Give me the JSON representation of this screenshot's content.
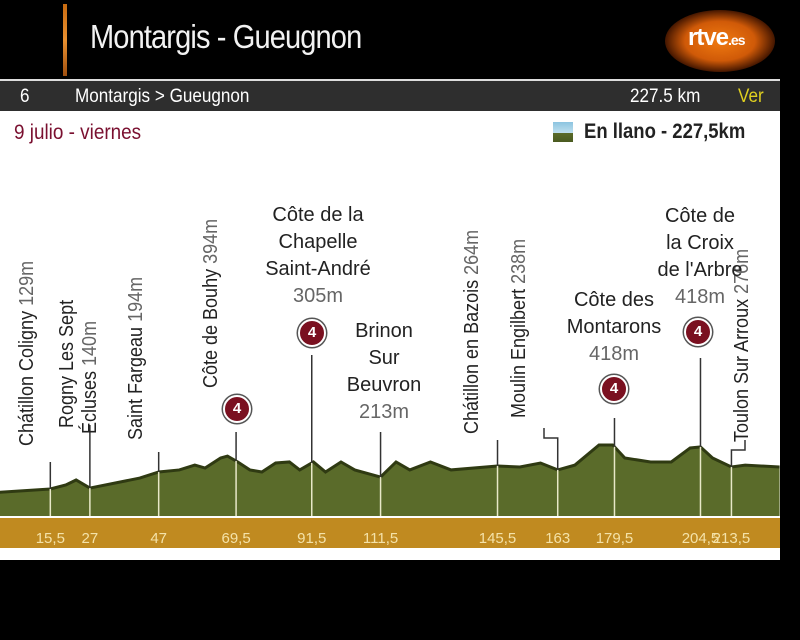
{
  "header": {
    "title": "Montargis - Gueugnon",
    "logo": "rtve.es"
  },
  "stage_bar": {
    "stage_number": "6",
    "route": "Montargis > Gueugnon",
    "distance": "227.5 km",
    "link": "Ver"
  },
  "date": "9 julio - viernes",
  "legend": {
    "icon": "flat-stage-icon",
    "label": "En llano - 227,5km"
  },
  "colors": {
    "terrain": "#5a6b2a",
    "km_band": "#c08a20",
    "badge": "#7a1020",
    "date": "#7a1030",
    "link": "#e0d020"
  },
  "chart_data": {
    "type": "area",
    "xlabel": "",
    "ylabel": "",
    "xlim": [
      0,
      227.5
    ],
    "grid": false,
    "profile": [
      [
        0,
        115
      ],
      [
        15.5,
        135
      ],
      [
        20,
        158
      ],
      [
        23,
        187
      ],
      [
        27,
        140
      ],
      [
        41.5,
        198
      ],
      [
        47,
        233
      ],
      [
        53,
        245
      ],
      [
        57.5,
        273
      ],
      [
        60.5,
        256
      ],
      [
        65,
        314
      ],
      [
        67,
        325
      ],
      [
        70,
        291
      ],
      [
        73.5,
        245
      ],
      [
        77,
        233
      ],
      [
        81,
        285
      ],
      [
        85,
        291
      ],
      [
        88,
        245
      ],
      [
        92,
        291
      ],
      [
        95.5,
        233
      ],
      [
        100,
        291
      ],
      [
        104,
        245
      ],
      [
        111.5,
        204
      ],
      [
        116,
        291
      ],
      [
        120,
        245
      ],
      [
        126,
        291
      ],
      [
        132,
        245
      ],
      [
        145.5,
        268
      ],
      [
        152,
        262
      ],
      [
        158,
        285
      ],
      [
        163,
        245
      ],
      [
        168,
        273
      ],
      [
        175,
        389
      ],
      [
        179,
        389
      ],
      [
        182.5,
        314
      ],
      [
        190,
        291
      ],
      [
        196,
        291
      ],
      [
        201.5,
        372
      ],
      [
        204.5,
        378
      ],
      [
        208,
        314
      ],
      [
        213.5,
        262
      ],
      [
        217.5,
        273
      ],
      [
        227.5,
        262
      ]
    ],
    "km_ticks": [
      "15,5",
      "27",
      "47",
      "69,5",
      "91,5",
      "111,5",
      "145,5",
      "163",
      "179,5",
      "204,5",
      "213,5"
    ],
    "waypoints": [
      {
        "km": 15.5,
        "name": "Chátillon Coligny",
        "altitude": "129m"
      },
      {
        "km": 27,
        "name": "Rogny Les Sept",
        "name2": "Écluses",
        "altitude": "140m"
      },
      {
        "km": 47,
        "name": "Saint Fargeau",
        "altitude": "194m"
      },
      {
        "km": 69.5,
        "name": "Côte de Bouhy",
        "altitude": "394m",
        "category": "4"
      },
      {
        "km": 91.5,
        "name": "Côte de la",
        "name2": "Chapelle",
        "name3": "Saint-André",
        "altitude": "305m",
        "category": "4"
      },
      {
        "km": 111.5,
        "name": "Brinon",
        "name2": "Sur",
        "name3": "Beuvron",
        "altitude": "213m"
      },
      {
        "km": 145.5,
        "name": "Chátillon en Bazois",
        "altitude": "264m"
      },
      {
        "km": 163,
        "name": "Moulin Engilbert",
        "altitude": "238m"
      },
      {
        "km": 179.5,
        "name": "Côte des",
        "name2": "Montarons",
        "altitude": "418m",
        "category": "4"
      },
      {
        "km": 204.5,
        "name": "Côte de",
        "name2": "la Croix",
        "name3": "de l'Arbre",
        "altitude": "418m",
        "category": "4"
      },
      {
        "km": 213.5,
        "name": "Toulon Sur Arroux",
        "altitude": "276m"
      }
    ]
  }
}
